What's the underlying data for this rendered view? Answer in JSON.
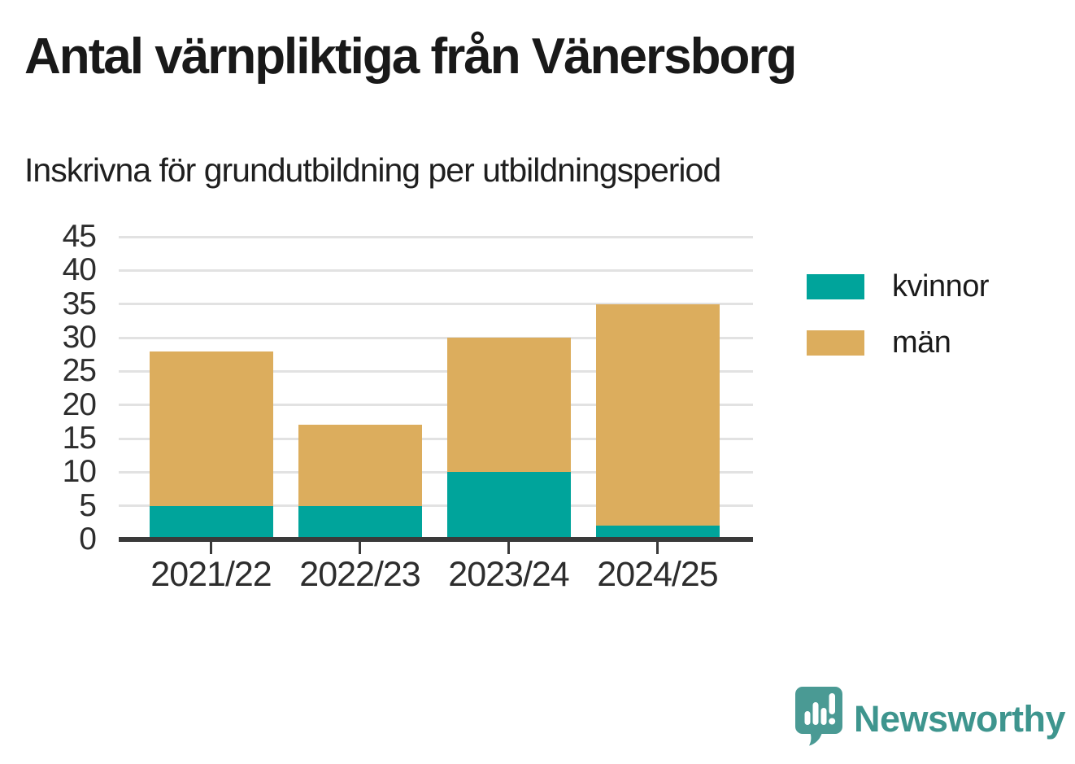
{
  "header": {
    "title": "Antal värnpliktiga från Vänersborg",
    "subtitle": "Inskrivna för grundutbildning per utbildningsperiod"
  },
  "chart_data": {
    "type": "bar",
    "stacked": true,
    "title": "Antal värnpliktiga från Vänersborg",
    "subtitle": "Inskrivna för grundutbildning per utbildningsperiod",
    "categories": [
      "2021/22",
      "2022/23",
      "2023/24",
      "2024/25"
    ],
    "series": [
      {
        "name": "kvinnor",
        "color": "#00a49b",
        "values": [
          5,
          5,
          10,
          2
        ]
      },
      {
        "name": "män",
        "color": "#dcad5d",
        "values": [
          23,
          12,
          20,
          33
        ]
      }
    ],
    "stack_totals": [
      28,
      17,
      30,
      35
    ],
    "ylim": [
      0,
      45
    ],
    "ytick_step": 5,
    "grid": true,
    "gridline_color": "#e2e2e2",
    "axis_color": "#3a3a3a",
    "legend_position": "right"
  },
  "footer": {
    "brand": "Newsworthy",
    "brand_color": "#3e958e",
    "logo_color": "#4a9a94"
  }
}
